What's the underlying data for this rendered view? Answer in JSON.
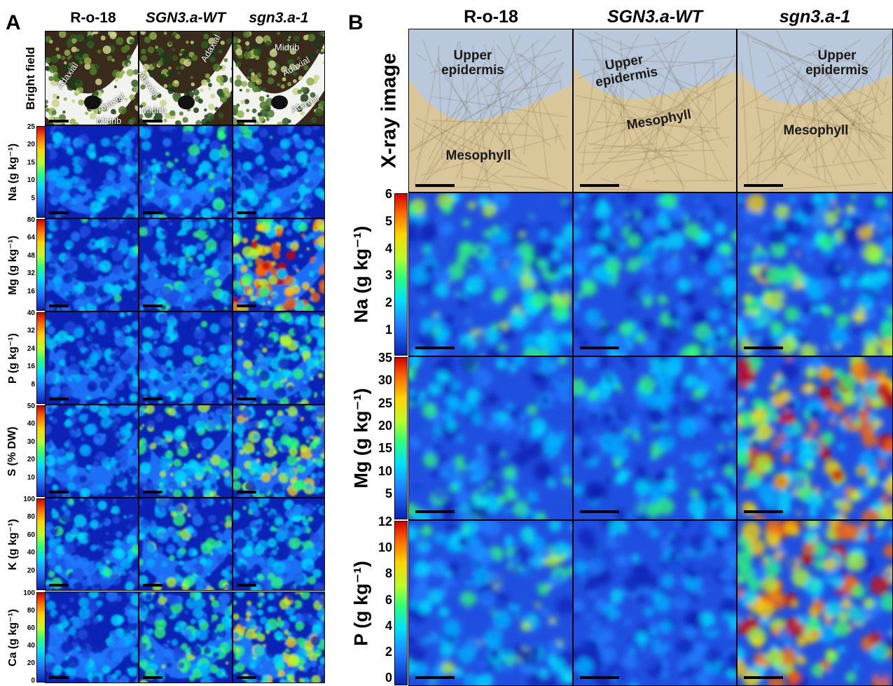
{
  "panel_a": {
    "letter": "A",
    "columns": [
      "R-o-18",
      "SGN3.a-WT",
      "sgn3.a-1"
    ],
    "bright_field_label": "Bright field",
    "annotations": {
      "ro18": [
        "Adaxial",
        "Abaxial",
        "Midrib"
      ],
      "wt": [
        "Abaxial",
        "Adaxial",
        "Midrib"
      ],
      "sgn": [
        "Midrib",
        "Adaxial",
        "Abaxial"
      ]
    },
    "rows": [
      {
        "label": "Na (g kg⁻¹)",
        "ticks": [
          "25",
          "20",
          "15",
          "10",
          "5"
        ]
      },
      {
        "label": "Mg (g kg⁻¹)",
        "ticks": [
          "80",
          "64",
          "48",
          "32",
          "16"
        ]
      },
      {
        "label": "P (g kg⁻¹)",
        "ticks": [
          "40",
          "32",
          "24",
          "16",
          "8"
        ]
      },
      {
        "label": "S (% DW)",
        "ticks": [
          "50",
          "40",
          "30",
          "20",
          "10"
        ]
      },
      {
        "label": "K (g kg⁻¹)",
        "ticks": [
          "100",
          "80",
          "60",
          "40",
          "20"
        ]
      },
      {
        "label": "Ca (g kg⁻¹)",
        "ticks": [
          "100",
          "80",
          "60",
          "40",
          "20",
          "0"
        ]
      }
    ]
  },
  "panel_b": {
    "letter": "B",
    "columns": [
      "R-o-18",
      "SGN3.a-WT",
      "sgn3.a-1"
    ],
    "xray_label": "X-ray image",
    "xray_annotations": {
      "ro18": [
        "Upper epidermis",
        "Mesophyll"
      ],
      "wt": [
        "Upper epidermis",
        "Mesophyll"
      ],
      "sgn": [
        "Upper epidermis",
        "Mesophyll"
      ]
    },
    "rows": [
      {
        "label": "Na (g kg⁻¹)",
        "ticks": [
          "6",
          "5",
          "4",
          "3",
          "2",
          "1"
        ]
      },
      {
        "label": "Mg (g kg⁻¹)",
        "ticks": [
          "35",
          "30",
          "25",
          "20",
          "15",
          "10",
          "5"
        ]
      },
      {
        "label": "P (g kg⁻¹)",
        "ticks": [
          "12",
          "10",
          "8",
          "6",
          "4",
          "2",
          "0"
        ]
      }
    ]
  },
  "colors": {
    "map_low": "#0a22b5",
    "map_mid": "#2cff7a",
    "map_high": "#d40000",
    "xray_epidermis": "#b9c8da",
    "xray_mesophyll": "#d9c79a"
  }
}
